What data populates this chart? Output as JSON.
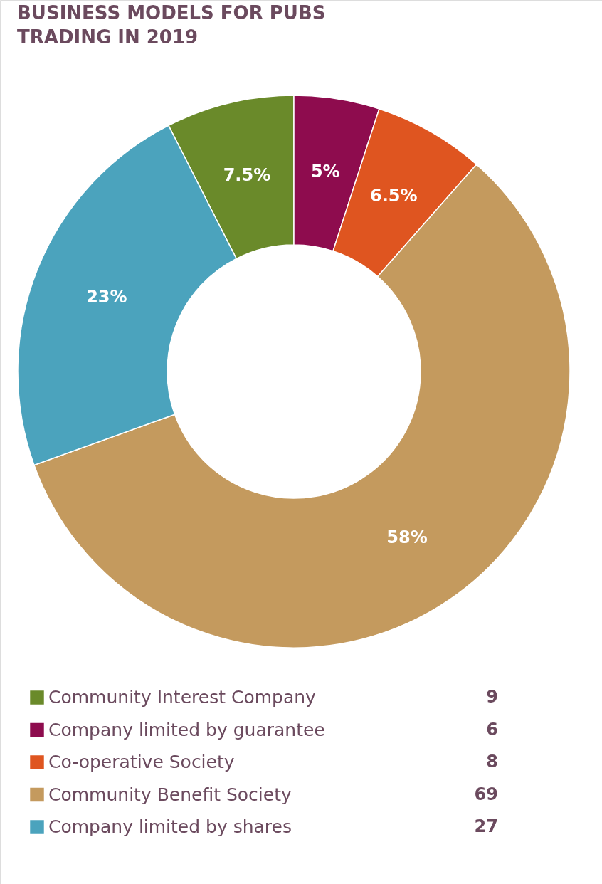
{
  "chart_data": {
    "type": "donut",
    "title": "BUSINESS MODELS FOR PUBS TRADING IN 2019",
    "categories": [
      "Community Interest Company",
      "Company limited by guarantee",
      "Co-operative Society",
      "Community Benefit Society",
      "Company limited by shares"
    ],
    "values": [
      7.5,
      5,
      6.5,
      58,
      23
    ],
    "value_labels": [
      "7.5%",
      "5%",
      "6.5%",
      "58%",
      "23%"
    ],
    "annotations": [
      "9",
      "6",
      "8",
      "69",
      "27"
    ],
    "colors": [
      "#6a8a2a",
      "#8e0c4e",
      "#df5520",
      "#c49a5e",
      "#4ba3bd"
    ],
    "legend": "bottom"
  }
}
